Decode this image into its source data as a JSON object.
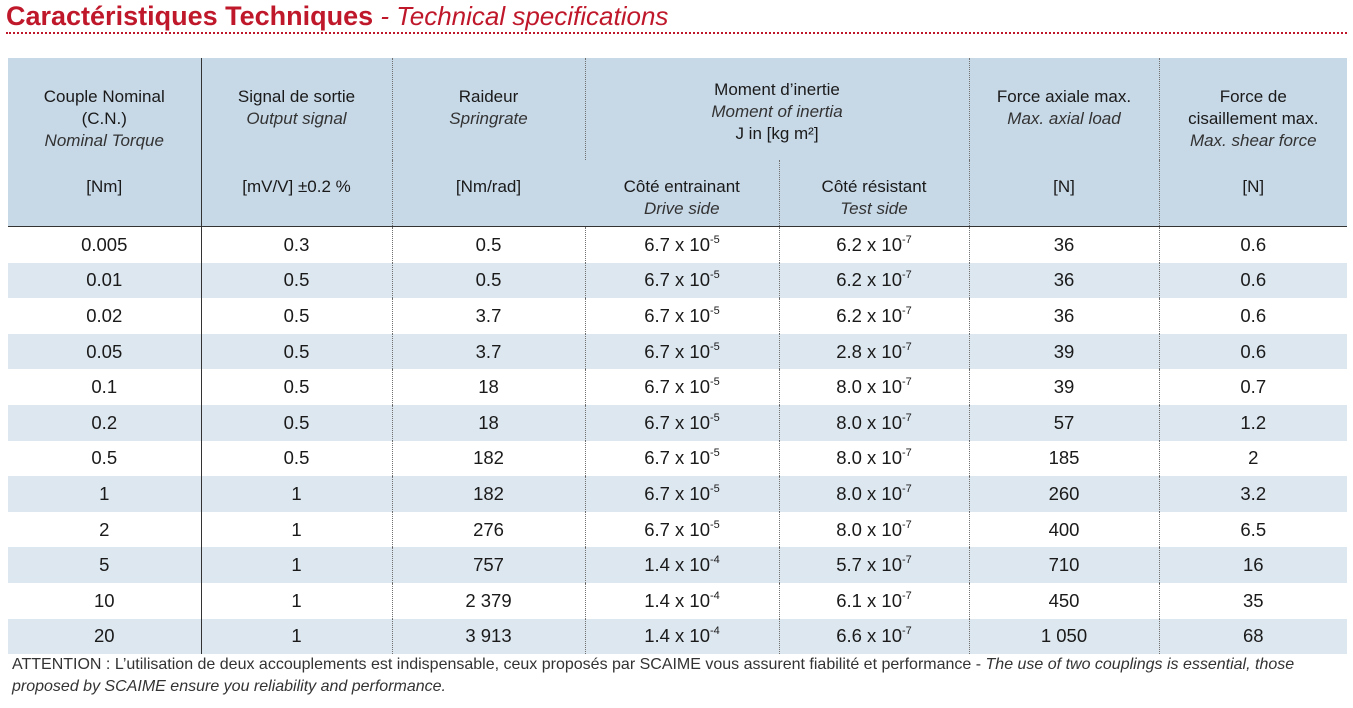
{
  "title": {
    "french": "Caractéristiques Techniques",
    "separator": " - ",
    "english": "Technical specifications"
  },
  "columns": {
    "couple": {
      "fr": "Couple Nominal",
      "fr2": "(C.N.)",
      "en": "Nominal Torque",
      "unit": "[Nm]"
    },
    "signal": {
      "fr": "Signal de sortie",
      "en": "Output signal",
      "unit": "[mV/V] ±0.2 %"
    },
    "raideur": {
      "fr": "Raideur",
      "en": "Springrate",
      "unit": "[Nm/rad]"
    },
    "inertie": {
      "fr": "Moment d’inertie",
      "en": "Moment of inertia",
      "unit": "J in [kg m²]"
    },
    "drive": {
      "fr": "Côté entrainant",
      "en": "Drive side"
    },
    "test": {
      "fr": "Côté résistant",
      "en": "Test side"
    },
    "axiale": {
      "fr": "Force axiale max.",
      "en": "Max. axial load",
      "unit": "[N]"
    },
    "cisaillement": {
      "fr": "Force de",
      "fr2": "cisaillement max.",
      "en": "Max. shear force",
      "unit": "[N]"
    }
  },
  "rows": [
    {
      "couple": "0.005",
      "signal": "0.3",
      "raideur": "0.5",
      "drive_base": "6.7 x 10",
      "drive_exp": "-5",
      "test_base": "6.2 x 10",
      "test_exp": "-7",
      "axiale": "36",
      "cisaillement": "0.6"
    },
    {
      "couple": "0.01",
      "signal": "0.5",
      "raideur": "0.5",
      "drive_base": "6.7 x 10",
      "drive_exp": "-5",
      "test_base": "6.2 x 10",
      "test_exp": "-7",
      "axiale": "36",
      "cisaillement": "0.6"
    },
    {
      "couple": "0.02",
      "signal": "0.5",
      "raideur": "3.7",
      "drive_base": "6.7 x 10",
      "drive_exp": "-5",
      "test_base": "6.2 x 10",
      "test_exp": "-7",
      "axiale": "36",
      "cisaillement": "0.6"
    },
    {
      "couple": "0.05",
      "signal": "0.5",
      "raideur": "3.7",
      "drive_base": "6.7 x 10",
      "drive_exp": "-5",
      "test_base": "2.8 x 10",
      "test_exp": "-7",
      "axiale": "39",
      "cisaillement": "0.6"
    },
    {
      "couple": "0.1",
      "signal": "0.5",
      "raideur": "18",
      "drive_base": "6.7 x 10",
      "drive_exp": "-5",
      "test_base": "8.0 x 10",
      "test_exp": "-7",
      "axiale": "39",
      "cisaillement": "0.7"
    },
    {
      "couple": "0.2",
      "signal": "0.5",
      "raideur": "18",
      "drive_base": "6.7 x 10",
      "drive_exp": "-5",
      "test_base": "8.0 x 10",
      "test_exp": "-7",
      "axiale": "57",
      "cisaillement": "1.2"
    },
    {
      "couple": "0.5",
      "signal": "0.5",
      "raideur": "182",
      "drive_base": "6.7 x 10",
      "drive_exp": "-5",
      "test_base": "8.0 x 10",
      "test_exp": "-7",
      "axiale": "185",
      "cisaillement": "2"
    },
    {
      "couple": "1",
      "signal": "1",
      "raideur": "182",
      "drive_base": "6.7 x 10",
      "drive_exp": "-5",
      "test_base": "8.0 x 10",
      "test_exp": "-7",
      "axiale": "260",
      "cisaillement": "3.2"
    },
    {
      "couple": "2",
      "signal": "1",
      "raideur": "276",
      "drive_base": "6.7 x 10",
      "drive_exp": "-5",
      "test_base": "8.0 x 10",
      "test_exp": "-7",
      "axiale": "400",
      "cisaillement": "6.5"
    },
    {
      "couple": "5",
      "signal": "1",
      "raideur": "757",
      "drive_base": "1.4 x 10",
      "drive_exp": "-4",
      "test_base": "5.7 x 10",
      "test_exp": "-7",
      "axiale": "710",
      "cisaillement": "16"
    },
    {
      "couple": "10",
      "signal": "1",
      "raideur": "2 379",
      "drive_base": "1.4 x 10",
      "drive_exp": "-4",
      "test_base": "6.1 x 10",
      "test_exp": "-7",
      "axiale": "450",
      "cisaillement": "35"
    },
    {
      "couple": "20",
      "signal": "1",
      "raideur": "3 913",
      "drive_base": "1.4 x 10",
      "drive_exp": "-4",
      "test_base": "6.6 x 10",
      "test_exp": "-7",
      "axiale": "1 050",
      "cisaillement": "68"
    }
  ],
  "footnote": {
    "fr": "ATTENTION : L’utilisation de deux accouplements est indispensable, ceux proposés par SCAIME vous assurent fiabilité et performance - ",
    "en": "The use of two couplings is essential, those proposed by SCAIME ensure you reliability and performance."
  },
  "colors": {
    "title_red": "#c0182b",
    "header_blue": "#c7d8e7",
    "stripe_blue": "#dde7f0"
  }
}
